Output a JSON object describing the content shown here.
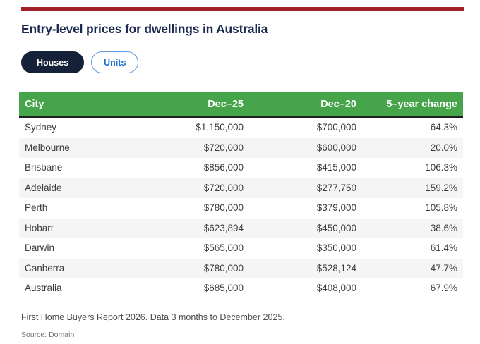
{
  "header": {
    "title": "Entry-level prices for dwellings in Australia"
  },
  "toggles": {
    "houses_label": "Houses",
    "units_label": "Units",
    "active": "Houses"
  },
  "chart_data": {
    "type": "table",
    "title": "Entry-level prices for dwellings in Australia",
    "views": [
      "Houses",
      "Units"
    ],
    "active_view": "Houses",
    "columns": [
      "City",
      "Dec–25",
      "Dec–20",
      "5–year change"
    ],
    "rows": [
      [
        "Sydney",
        "$1,150,000",
        "$700,000",
        "64.3%"
      ],
      [
        "Melbourne",
        "$720,000",
        "$600,000",
        "20.0%"
      ],
      [
        "Brisbane",
        "$856,000",
        "$415,000",
        "106.3%"
      ],
      [
        "Adelaide",
        "$720,000",
        "$277,750",
        "159.2%"
      ],
      [
        "Perth",
        "$780,000",
        "$379,000",
        "105.8%"
      ],
      [
        "Hobart",
        "$623,894",
        "$450,000",
        "38.6%"
      ],
      [
        "Darwin",
        "$565,000",
        "$350,000",
        "61.4%"
      ],
      [
        "Canberra",
        "$780,000",
        "$528,124",
        "47.7%"
      ],
      [
        "Australia",
        "$685,000",
        "$408,000",
        "67.9%"
      ]
    ],
    "footnote": "First Home Buyers Report 2026. Data 3 months to December 2025.",
    "source": "Source: Domain"
  },
  "notes": {
    "footnote": "First Home Buyers Report 2026. Data 3 months to December 2025.",
    "source": "Source: Domain"
  },
  "colors": {
    "top_accent_red": "#a02228",
    "table_header_green": "#46a44a",
    "title_navy": "#1b2a4e",
    "active_pill_navy": "#152138",
    "inactive_pill_blue": "#1a6fd6",
    "zebra_gray": "#f5f5f6"
  }
}
